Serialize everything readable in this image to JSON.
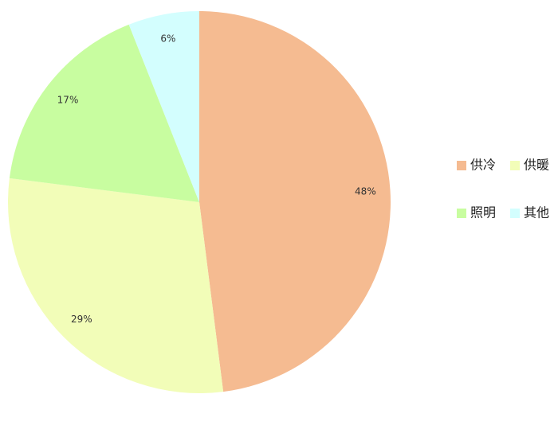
{
  "chart_data": {
    "type": "pie",
    "categories": [
      "供冷",
      "供暖",
      "照明",
      "其他"
    ],
    "values": [
      48,
      29,
      17,
      6
    ],
    "value_labels": [
      "48%",
      "29%",
      "17%",
      "6%"
    ],
    "colors": [
      "#f5bb91",
      "#f2fdb8",
      "#c8fda0",
      "#d3fefe"
    ]
  }
}
